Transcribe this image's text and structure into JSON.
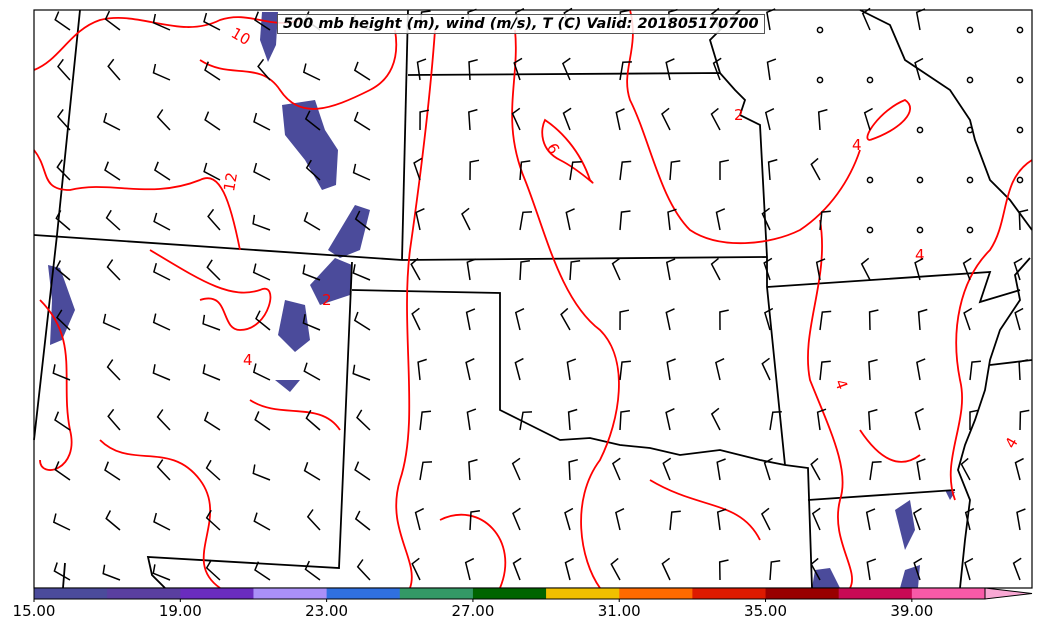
{
  "title": "500 mb height (m), wind (m/s), T (C) Valid: 201805170700",
  "contour_labels": [
    "10",
    "12",
    "6",
    "2",
    "4",
    "4",
    "4",
    "4",
    "4",
    "2"
  ],
  "colorbar": {
    "min": 15,
    "max": 41,
    "step": 2,
    "colors": [
      "#4b4b9b",
      "#5a3fa0",
      "#6a2cbf",
      "#aa90f8",
      "#3070e0",
      "#339966",
      "#006400",
      "#f0c000",
      "#ff6a00",
      "#dd1a00",
      "#990000",
      "#c80a55",
      "#f85aa8"
    ],
    "extend_color": "#f9a8d4",
    "tick_labels": [
      "15.00",
      "19.00",
      "23.00",
      "27.00",
      "31.00",
      "35.00",
      "39.00"
    ]
  },
  "colors": {
    "contour": "#ff0000",
    "border": "#000000",
    "shade": "#4b4b9b"
  }
}
